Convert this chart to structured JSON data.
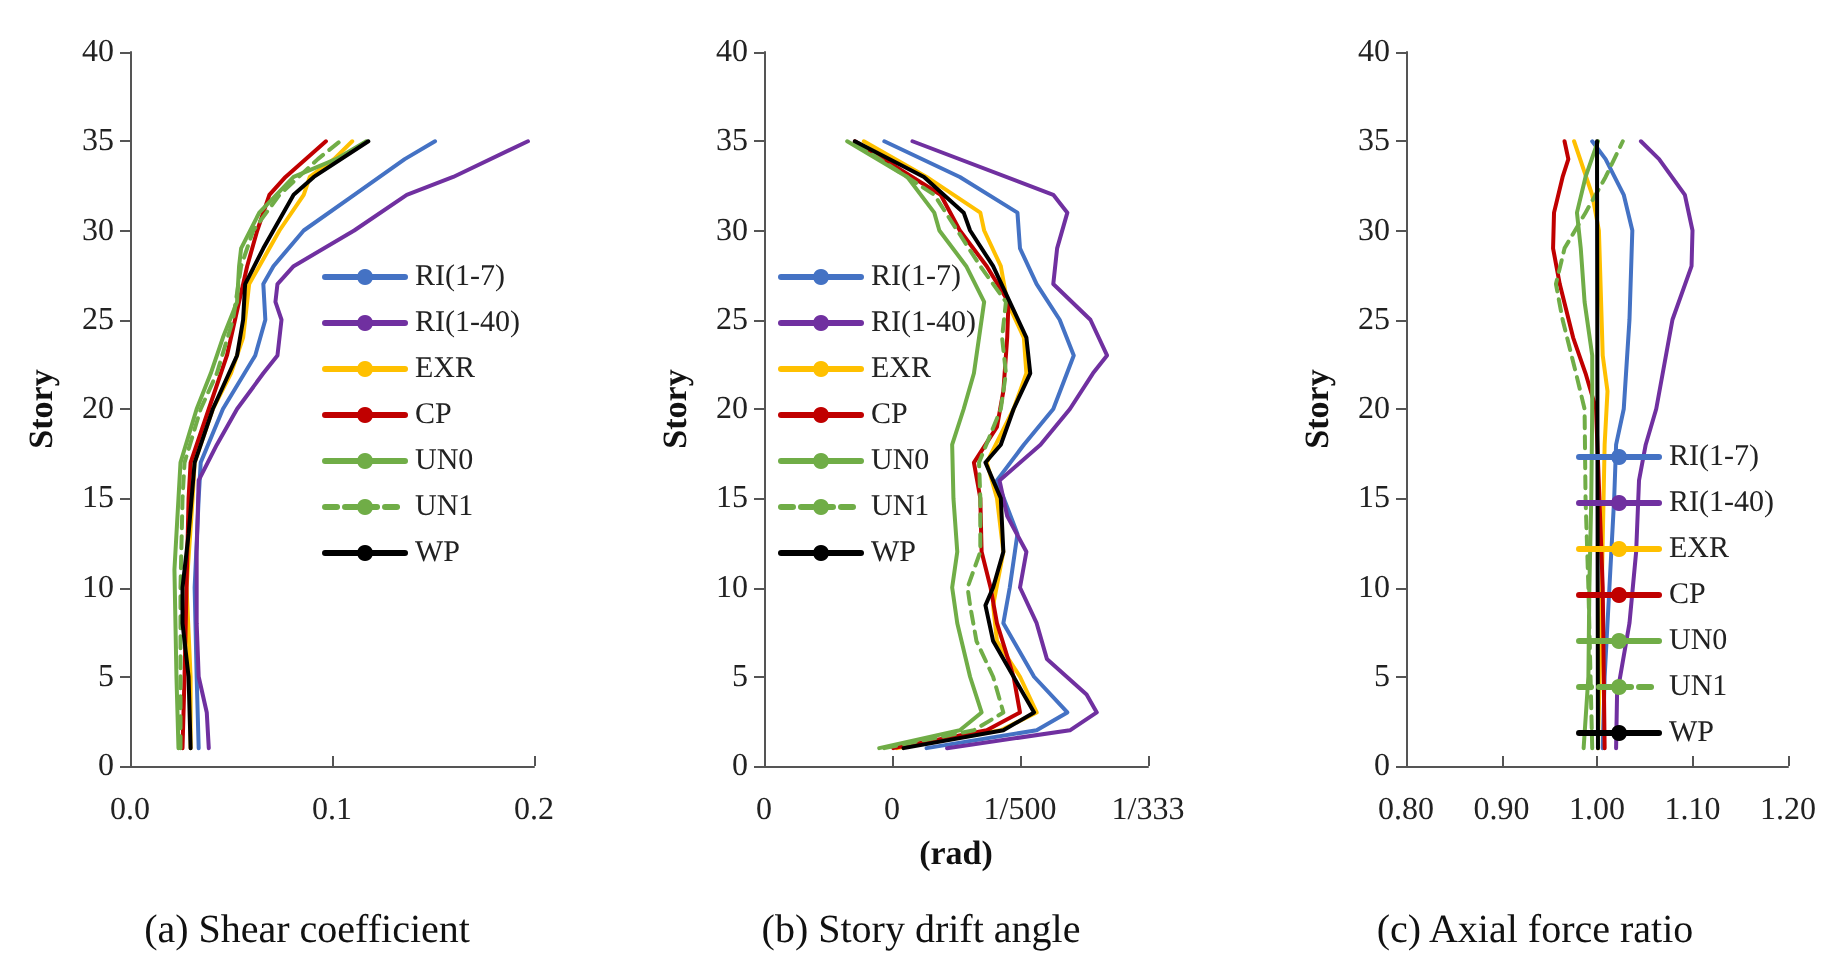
{
  "chart_data": [
    {
      "type": "line",
      "title": "(a) Shear coefficient",
      "ylabel": "Story",
      "xlim": [
        0,
        0.2
      ],
      "xticks": [
        {
          "value": 0,
          "label": "0.0"
        },
        0.1,
        0.2
      ],
      "ylim": [
        0,
        40
      ],
      "yticks": [
        0,
        5,
        10,
        15,
        20,
        25,
        30,
        35,
        40
      ],
      "grid": false,
      "marker": "none",
      "legend": "right",
      "series": [
        {
          "name": "RI(1-7)",
          "color": "#4472c4",
          "x": [
            0.034,
            0.033,
            0.032,
            0.034,
            0.035,
            0.046,
            0.062,
            0.067,
            0.066,
            0.071,
            0.086,
            0.111,
            0.136,
            0.151
          ],
          "values": [
            1,
            5,
            10,
            15,
            17,
            20,
            23,
            25,
            27,
            28,
            30,
            32,
            34,
            35
          ]
        },
        {
          "name": "RI(1-40)",
          "color": "#7030a0",
          "x": [
            0.039,
            0.038,
            0.034,
            0.033,
            0.033,
            0.034,
            0.043,
            0.053,
            0.066,
            0.073,
            0.075,
            0.072,
            0.073,
            0.081,
            0.111,
            0.137,
            0.16,
            0.197
          ],
          "values": [
            1,
            3,
            5,
            8,
            12,
            16,
            18,
            20,
            22,
            23,
            25,
            26,
            27,
            28,
            30,
            32,
            33,
            35
          ]
        },
        {
          "name": "EXR",
          "color": "#ffc000",
          "x": [
            0.03,
            0.03,
            0.028,
            0.031,
            0.032,
            0.041,
            0.05,
            0.056,
            0.059,
            0.064,
            0.074,
            0.086,
            0.089,
            0.101,
            0.11
          ],
          "values": [
            1,
            5,
            10,
            15,
            17,
            20,
            22,
            24,
            27,
            28,
            30,
            32,
            33,
            34,
            35
          ]
        },
        {
          "name": "CP",
          "color": "#c00000",
          "x": [
            0.026,
            0.027,
            0.028,
            0.029,
            0.03,
            0.039,
            0.048,
            0.054,
            0.058,
            0.063,
            0.069,
            0.077,
            0.097
          ],
          "values": [
            1,
            5,
            10,
            15,
            17,
            20,
            23,
            26,
            28,
            30,
            32,
            33,
            35
          ]
        },
        {
          "name": "UN0",
          "color": "#70ad47",
          "x": [
            0.024,
            0.023,
            0.022,
            0.024,
            0.025,
            0.033,
            0.04,
            0.046,
            0.053,
            0.054,
            0.055,
            0.064,
            0.081,
            0.102,
            0.117
          ],
          "values": [
            1,
            5,
            11,
            15,
            17,
            20,
            22,
            24,
            26,
            28,
            29,
            31,
            33,
            34,
            35
          ]
        },
        {
          "name": "UN1",
          "color": "#70ad47",
          "line_style": "dashed",
          "x": [
            0.025,
            0.025,
            0.025,
            0.026,
            0.027,
            0.035,
            0.043,
            0.051,
            0.055,
            0.061,
            0.074,
            0.093,
            0.104
          ],
          "values": [
            1,
            5,
            10,
            15,
            17,
            20,
            22,
            25,
            28,
            30,
            32,
            34,
            35
          ]
        },
        {
          "name": "WP",
          "color": "#000000",
          "x": [
            0.03,
            0.029,
            0.026,
            0.026,
            0.029,
            0.032,
            0.041,
            0.053,
            0.056,
            0.057,
            0.066,
            0.081,
            0.091,
            0.118
          ],
          "values": [
            1,
            5,
            8,
            10,
            13,
            17,
            20,
            23,
            25,
            27,
            29,
            32,
            33,
            35
          ]
        }
      ]
    },
    {
      "type": "line",
      "title": "(b) Story drift angle",
      "xlabel": "(rad)",
      "ylabel": "Story",
      "xlim": [
        0,
        0.003
      ],
      "xticks": [
        0,
        {
          "value": 0.001,
          "label": "0"
        },
        {
          "value": 0.002,
          "label": "1/500"
        },
        {
          "value": 0.003,
          "label": "1/333"
        }
      ],
      "ylim": [
        0,
        40
      ],
      "yticks": [
        0,
        5,
        10,
        15,
        20,
        25,
        30,
        35,
        40
      ],
      "grid": false,
      "marker": "none",
      "legend": "left",
      "series": [
        {
          "name": "RI(1-7)",
          "color": "#4472c4",
          "x": [
            0.00127,
            0.00213,
            0.00237,
            0.00211,
            0.00187,
            0.00192,
            0.00198,
            0.00182,
            0.00203,
            0.00226,
            0.00242,
            0.00231,
            0.00213,
            0.002,
            0.00198,
            0.00153,
            0.00094
          ],
          "values": [
            1,
            2,
            3,
            5,
            8,
            10,
            13,
            16,
            18,
            20,
            23,
            25,
            27,
            29,
            31,
            33,
            35
          ]
        },
        {
          "name": "RI(1-40)",
          "color": "#7030a0",
          "x": [
            0.00143,
            0.00239,
            0.0026,
            0.00252,
            0.00221,
            0.00213,
            0.002,
            0.00205,
            0.0019,
            0.00184,
            0.00216,
            0.00239,
            0.00257,
            0.00268,
            0.00255,
            0.00226,
            0.00229,
            0.00237,
            0.00226,
            0.00116
          ],
          "values": [
            1,
            2,
            3,
            4,
            6,
            8,
            10,
            12,
            14,
            16,
            18,
            20,
            22,
            23,
            25,
            27,
            29,
            31,
            32,
            35
          ]
        },
        {
          "name": "EXR",
          "color": "#ffc000",
          "x": [
            0.00104,
            0.00185,
            0.00213,
            0.002,
            0.00182,
            0.00179,
            0.00187,
            0.00182,
            0.00174,
            0.00195,
            0.00205,
            0.00203,
            0.0019,
            0.00185,
            0.00172,
            0.00169,
            0.00127,
            0.00078
          ],
          "values": [
            1,
            2,
            3,
            5,
            7,
            9,
            12,
            15,
            17,
            20,
            22,
            24,
            26,
            28,
            30,
            31,
            33,
            35
          ]
        },
        {
          "name": "CP",
          "color": "#c00000",
          "x": [
            0.00101,
            0.00174,
            0.002,
            0.00195,
            0.00182,
            0.00177,
            0.0017,
            0.00169,
            0.00164,
            0.00182,
            0.00187,
            0.0019,
            0.00191,
            0.00174,
            0.00153,
            0.00138,
            0.00071
          ],
          "values": [
            1,
            2,
            3,
            5,
            8,
            10,
            12,
            15,
            17,
            19,
            21,
            24,
            26,
            28,
            30,
            32,
            35
          ]
        },
        {
          "name": "UN0",
          "color": "#70ad47",
          "x": [
            0.0009,
            0.00153,
            0.0017,
            0.00161,
            0.00151,
            0.00147,
            0.00151,
            0.00148,
            0.00147,
            0.00156,
            0.00164,
            0.00168,
            0.00172,
            0.00158,
            0.00137,
            0.00133,
            0.00112,
            0.00065
          ],
          "values": [
            1,
            2,
            3,
            5,
            8,
            10,
            12,
            15,
            18,
            20,
            22,
            24,
            26,
            28,
            30,
            31,
            33,
            35
          ]
        },
        {
          "name": "UN1",
          "color": "#70ad47",
          "line_style": "dashed",
          "x": [
            0.00094,
            0.00164,
            0.00187,
            0.00179,
            0.00166,
            0.00161,
            0.00159,
            0.00169,
            0.00169,
            0.00168,
            0.00185,
            0.00189,
            0.00186,
            0.00189,
            0.00169,
            0.00151,
            0.00133,
            0.00069
          ],
          "values": [
            1,
            2,
            3,
            5,
            7,
            9,
            10,
            12,
            15,
            17,
            20,
            22,
            24,
            26,
            28,
            30,
            32,
            35
          ]
        },
        {
          "name": "WP",
          "color": "#000000",
          "x": [
            0.00109,
            0.00187,
            0.00211,
            0.00195,
            0.00179,
            0.00173,
            0.00179,
            0.00187,
            0.00185,
            0.00173,
            0.00185,
            0.00195,
            0.00208,
            0.00205,
            0.00192,
            0.00179,
            0.00161,
            0.00156,
            0.00125,
            0.00071
          ],
          "values": [
            1,
            2,
            3,
            5,
            7,
            9,
            10,
            12,
            15,
            17,
            18,
            20,
            22,
            24,
            26,
            28,
            30,
            31,
            33,
            35
          ]
        }
      ]
    },
    {
      "type": "line",
      "title": "(c) Axial force ratio",
      "ylabel": "Story",
      "xlim": [
        0.8,
        1.2
      ],
      "xticks": [
        {
          "value": 0.8,
          "label": "0.80"
        },
        {
          "value": 0.9,
          "label": "0.90"
        },
        {
          "value": 1,
          "label": "1.00"
        },
        {
          "value": 1.1,
          "label": "1.10"
        },
        {
          "value": 1.2,
          "label": "1.20"
        }
      ],
      "ylim": [
        0,
        40
      ],
      "yticks": [
        0,
        5,
        10,
        15,
        20,
        25,
        30,
        35,
        40
      ],
      "grid": false,
      "marker": "none",
      "legend": "bottom right",
      "series": [
        {
          "name": "RI(1-7)",
          "color": "#4472c4",
          "x": [
            1.006,
            1.008,
            1.013,
            1.018,
            1.02,
            1.028,
            1.034,
            1.037,
            1.028,
            1.009,
            0.995
          ],
          "values": [
            1,
            5,
            10,
            15,
            18,
            20,
            25,
            30,
            32,
            34,
            35
          ]
        },
        {
          "name": "RI(1-40)",
          "color": "#7030a0",
          "x": [
            1.02,
            1.021,
            1.034,
            1.041,
            1.044,
            1.051,
            1.062,
            1.079,
            1.099,
            1.1,
            1.092,
            1.065,
            1.046
          ],
          "values": [
            1,
            4,
            8,
            12,
            16,
            18,
            20,
            25,
            28,
            30,
            32,
            34,
            35
          ]
        },
        {
          "name": "EXR",
          "color": "#ffc000",
          "x": [
            1.001,
            1.005,
            1.008,
            1.011,
            1.006,
            1.002,
            0.995,
            0.976
          ],
          "values": [
            1,
            10,
            18,
            21,
            23,
            30,
            32,
            35
          ]
        },
        {
          "name": "CP",
          "color": "#c00000",
          "x": [
            1.008,
            1.006,
            0.999,
            0.988,
            0.975,
            0.961,
            0.954,
            0.955,
            0.964,
            0.97,
            0.966
          ],
          "values": [
            1,
            10,
            20,
            22,
            24,
            27,
            29,
            31,
            33,
            34,
            35
          ]
        },
        {
          "name": "UN0",
          "color": "#70ad47",
          "x": [
            0.986,
            0.991,
            0.992,
            0.994,
            0.995,
            0.995,
            0.987,
            0.983,
            0.979,
            0.988,
            1.001
          ],
          "values": [
            1,
            5,
            10,
            15,
            20,
            23,
            26,
            29,
            31,
            33,
            35
          ]
        },
        {
          "name": "UN1",
          "color": "#70ad47",
          "line_style": "dashed",
          "x": [
            0.995,
            0.991,
            0.988,
            0.987,
            0.978,
            0.964,
            0.957,
            0.966,
            0.988,
            1.009,
            1.027
          ],
          "values": [
            1,
            10,
            15,
            20,
            22,
            25,
            27,
            29,
            31,
            33,
            35
          ]
        },
        {
          "name": "WP",
          "color": "#000000",
          "x": [
            1.001,
            1
          ],
          "values": [
            1,
            35
          ]
        }
      ]
    }
  ]
}
